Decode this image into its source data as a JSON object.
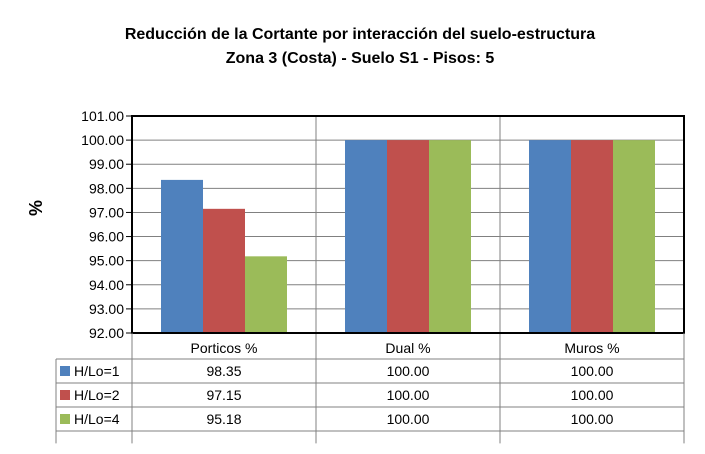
{
  "chart_data": {
    "type": "bar",
    "title": "Reducción de la Cortante por interacción del suelo-estructura",
    "subtitle": "Zona 3 (Costa) - Suelo S1 - Pisos: 5",
    "ylabel": "%",
    "xlabel": "",
    "ylim": [
      92.0,
      101.0
    ],
    "ytick_step": 1.0,
    "ytick_decimals": 2,
    "grid": true,
    "legend": "data-table-rows",
    "categories": [
      "Porticos %",
      "Dual  %",
      "Muros %"
    ],
    "series": [
      {
        "name": "H/Lo=1",
        "color": "#4f81bd",
        "values": [
          98.35,
          100.0,
          100.0
        ]
      },
      {
        "name": "H/Lo=2",
        "color": "#c0504d",
        "values": [
          97.15,
          100.0,
          100.0
        ]
      },
      {
        "name": "H/Lo=4",
        "color": "#9bbb59",
        "values": [
          95.18,
          100.0,
          100.0
        ]
      }
    ],
    "table_decimals": 2
  }
}
